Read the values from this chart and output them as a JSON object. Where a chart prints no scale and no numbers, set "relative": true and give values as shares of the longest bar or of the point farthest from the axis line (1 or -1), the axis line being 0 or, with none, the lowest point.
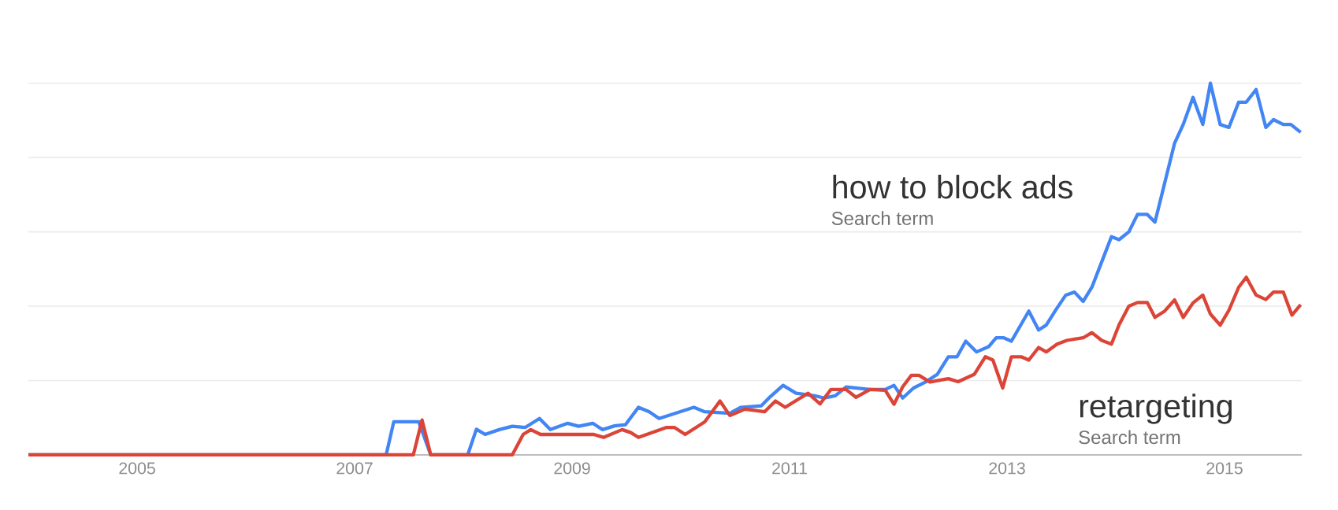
{
  "chart_data": {
    "type": "line",
    "relative": true,
    "grid": "y",
    "tick_labels": "x",
    "marker": "none",
    "line_style": "solid",
    "xlim": [
      2004.0,
      2015.71
    ],
    "xticks": [
      2005,
      2007,
      2009,
      2011,
      2013,
      2015
    ],
    "annotations": [
      "Search term",
      "Search term"
    ],
    "series": [
      {
        "name": "how to block ads",
        "color": "#4285f4",
        "x": [
          2004.0,
          2007.29,
          2007.36,
          2007.59,
          2007.7,
          2008.04,
          2008.12,
          2008.2,
          2008.33,
          2008.45,
          2008.57,
          2008.7,
          2008.8,
          2008.96,
          2009.06,
          2009.19,
          2009.28,
          2009.39,
          2009.49,
          2009.61,
          2009.71,
          2009.8,
          2009.93,
          2010.12,
          2010.22,
          2010.45,
          2010.55,
          2010.74,
          2010.81,
          2010.94,
          2011.06,
          2011.23,
          2011.32,
          2011.42,
          2011.52,
          2011.74,
          2011.88,
          2011.96,
          2012.04,
          2012.14,
          2012.25,
          2012.36,
          2012.46,
          2012.54,
          2012.62,
          2012.72,
          2012.83,
          2012.9,
          2012.97,
          2013.04,
          2013.2,
          2013.29,
          2013.36,
          2013.45,
          2013.54,
          2013.62,
          2013.7,
          2013.78,
          2013.87,
          2013.96,
          2014.03,
          2014.12,
          2014.2,
          2014.29,
          2014.36,
          2014.45,
          2014.54,
          2014.62,
          2014.71,
          2014.8,
          2014.87,
          2014.96,
          2015.04,
          2015.13,
          2015.2,
          2015.29,
          2015.38,
          2015.45,
          2015.54,
          2015.61,
          2015.7
        ],
        "values": [
          0,
          0,
          0.089,
          0.089,
          0,
          0,
          0.069,
          0.055,
          0.068,
          0.077,
          0.074,
          0.098,
          0.068,
          0.085,
          0.077,
          0.085,
          0.068,
          0.078,
          0.081,
          0.128,
          0.116,
          0.098,
          0.11,
          0.128,
          0.116,
          0.112,
          0.128,
          0.132,
          0.153,
          0.187,
          0.166,
          0.159,
          0.153,
          0.159,
          0.183,
          0.176,
          0.176,
          0.187,
          0.153,
          0.18,
          0.196,
          0.217,
          0.264,
          0.264,
          0.306,
          0.277,
          0.291,
          0.315,
          0.315,
          0.306,
          0.387,
          0.336,
          0.349,
          0.391,
          0.43,
          0.438,
          0.413,
          0.451,
          0.519,
          0.587,
          0.579,
          0.6,
          0.647,
          0.647,
          0.626,
          0.732,
          0.838,
          0.889,
          0.962,
          0.889,
          1.0,
          0.889,
          0.881,
          0.949,
          0.949,
          0.983,
          0.881,
          0.902,
          0.889,
          0.889,
          0.868
        ]
      },
      {
        "name": "retargeting",
        "color": "#db4437",
        "x": [
          2004.0,
          2007.54,
          2007.62,
          2007.7,
          2008.45,
          2008.55,
          2008.62,
          2008.71,
          2009.2,
          2009.29,
          2009.46,
          2009.54,
          2009.61,
          2009.87,
          2009.94,
          2010.04,
          2010.22,
          2010.36,
          2010.45,
          2010.59,
          2010.77,
          2010.87,
          2010.96,
          2011.17,
          2011.28,
          2011.38,
          2011.52,
          2011.61,
          2011.74,
          2011.88,
          2011.96,
          2012.04,
          2012.12,
          2012.19,
          2012.29,
          2012.46,
          2012.55,
          2012.7,
          2012.8,
          2012.87,
          2012.96,
          2013.04,
          2013.13,
          2013.2,
          2013.29,
          2013.36,
          2013.46,
          2013.55,
          2013.7,
          2013.78,
          2013.87,
          2013.96,
          2014.03,
          2014.12,
          2014.2,
          2014.29,
          2014.36,
          2014.45,
          2014.54,
          2014.62,
          2014.71,
          2014.8,
          2014.87,
          2014.96,
          2015.04,
          2015.13,
          2015.2,
          2015.29,
          2015.38,
          2015.45,
          2015.54,
          2015.62,
          2015.7
        ],
        "values": [
          0,
          0,
          0.094,
          0,
          0,
          0.055,
          0.068,
          0.055,
          0.055,
          0.047,
          0.068,
          0.06,
          0.047,
          0.074,
          0.074,
          0.055,
          0.089,
          0.145,
          0.106,
          0.123,
          0.116,
          0.145,
          0.128,
          0.166,
          0.137,
          0.176,
          0.176,
          0.155,
          0.176,
          0.174,
          0.136,
          0.183,
          0.214,
          0.214,
          0.196,
          0.205,
          0.197,
          0.217,
          0.264,
          0.255,
          0.18,
          0.264,
          0.264,
          0.255,
          0.289,
          0.277,
          0.298,
          0.308,
          0.315,
          0.329,
          0.308,
          0.298,
          0.35,
          0.4,
          0.41,
          0.41,
          0.37,
          0.387,
          0.417,
          0.37,
          0.409,
          0.43,
          0.379,
          0.349,
          0.389,
          0.451,
          0.478,
          0.43,
          0.418,
          0.438,
          0.438,
          0.376,
          0.404
        ]
      }
    ]
  }
}
